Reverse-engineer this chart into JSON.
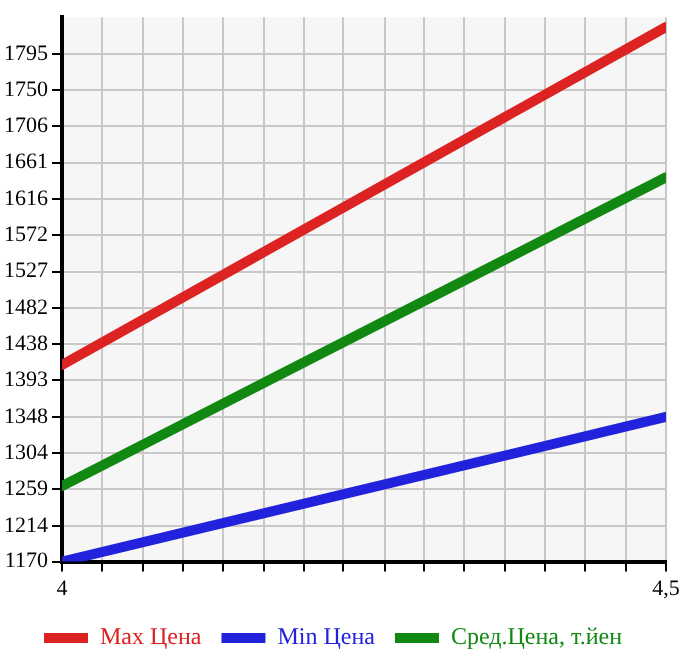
{
  "chart_data": {
    "type": "line",
    "xlim": [
      4,
      4.5
    ],
    "xticks": [
      4,
      {
        "value": 4.033,
        "label": null
      },
      {
        "value": 4.067,
        "label": null
      },
      {
        "value": 4.1,
        "label": null
      },
      {
        "value": 4.133,
        "label": null
      },
      {
        "value": 4.167,
        "label": null
      },
      {
        "value": 4.2,
        "label": null
      },
      {
        "value": 4.233,
        "label": null
      },
      {
        "value": 4.267,
        "label": null
      },
      {
        "value": 4.3,
        "label": null
      },
      {
        "value": 4.333,
        "label": null
      },
      {
        "value": 4.367,
        "label": null
      },
      {
        "value": 4.4,
        "label": null
      },
      {
        "value": 4.433,
        "label": null
      },
      {
        "value": 4.467,
        "label": null
      },
      {
        "value": 4.5,
        "label": "4,5"
      }
    ],
    "ylim": [
      1170,
      1840
    ],
    "yticks": [
      1170,
      1214,
      1259,
      1304,
      1348,
      1393,
      1438,
      1482,
      1527,
      1572,
      1616,
      1661,
      1706,
      1750,
      1795
    ],
    "x": [
      4,
      4.5
    ],
    "series": [
      {
        "name": "Max Цена",
        "color": "#dd2222",
        "values": [
          1412,
          1828
        ]
      },
      {
        "name": "Min Цена",
        "color": "#2222dd",
        "values": [
          1170,
          1348
        ]
      },
      {
        "name": "Сред.Цена, т.йен",
        "color": "#118811",
        "values": [
          1263,
          1643
        ]
      }
    ],
    "grid": true,
    "legend": "bottom",
    "marker": "none",
    "line_style": "solid"
  }
}
